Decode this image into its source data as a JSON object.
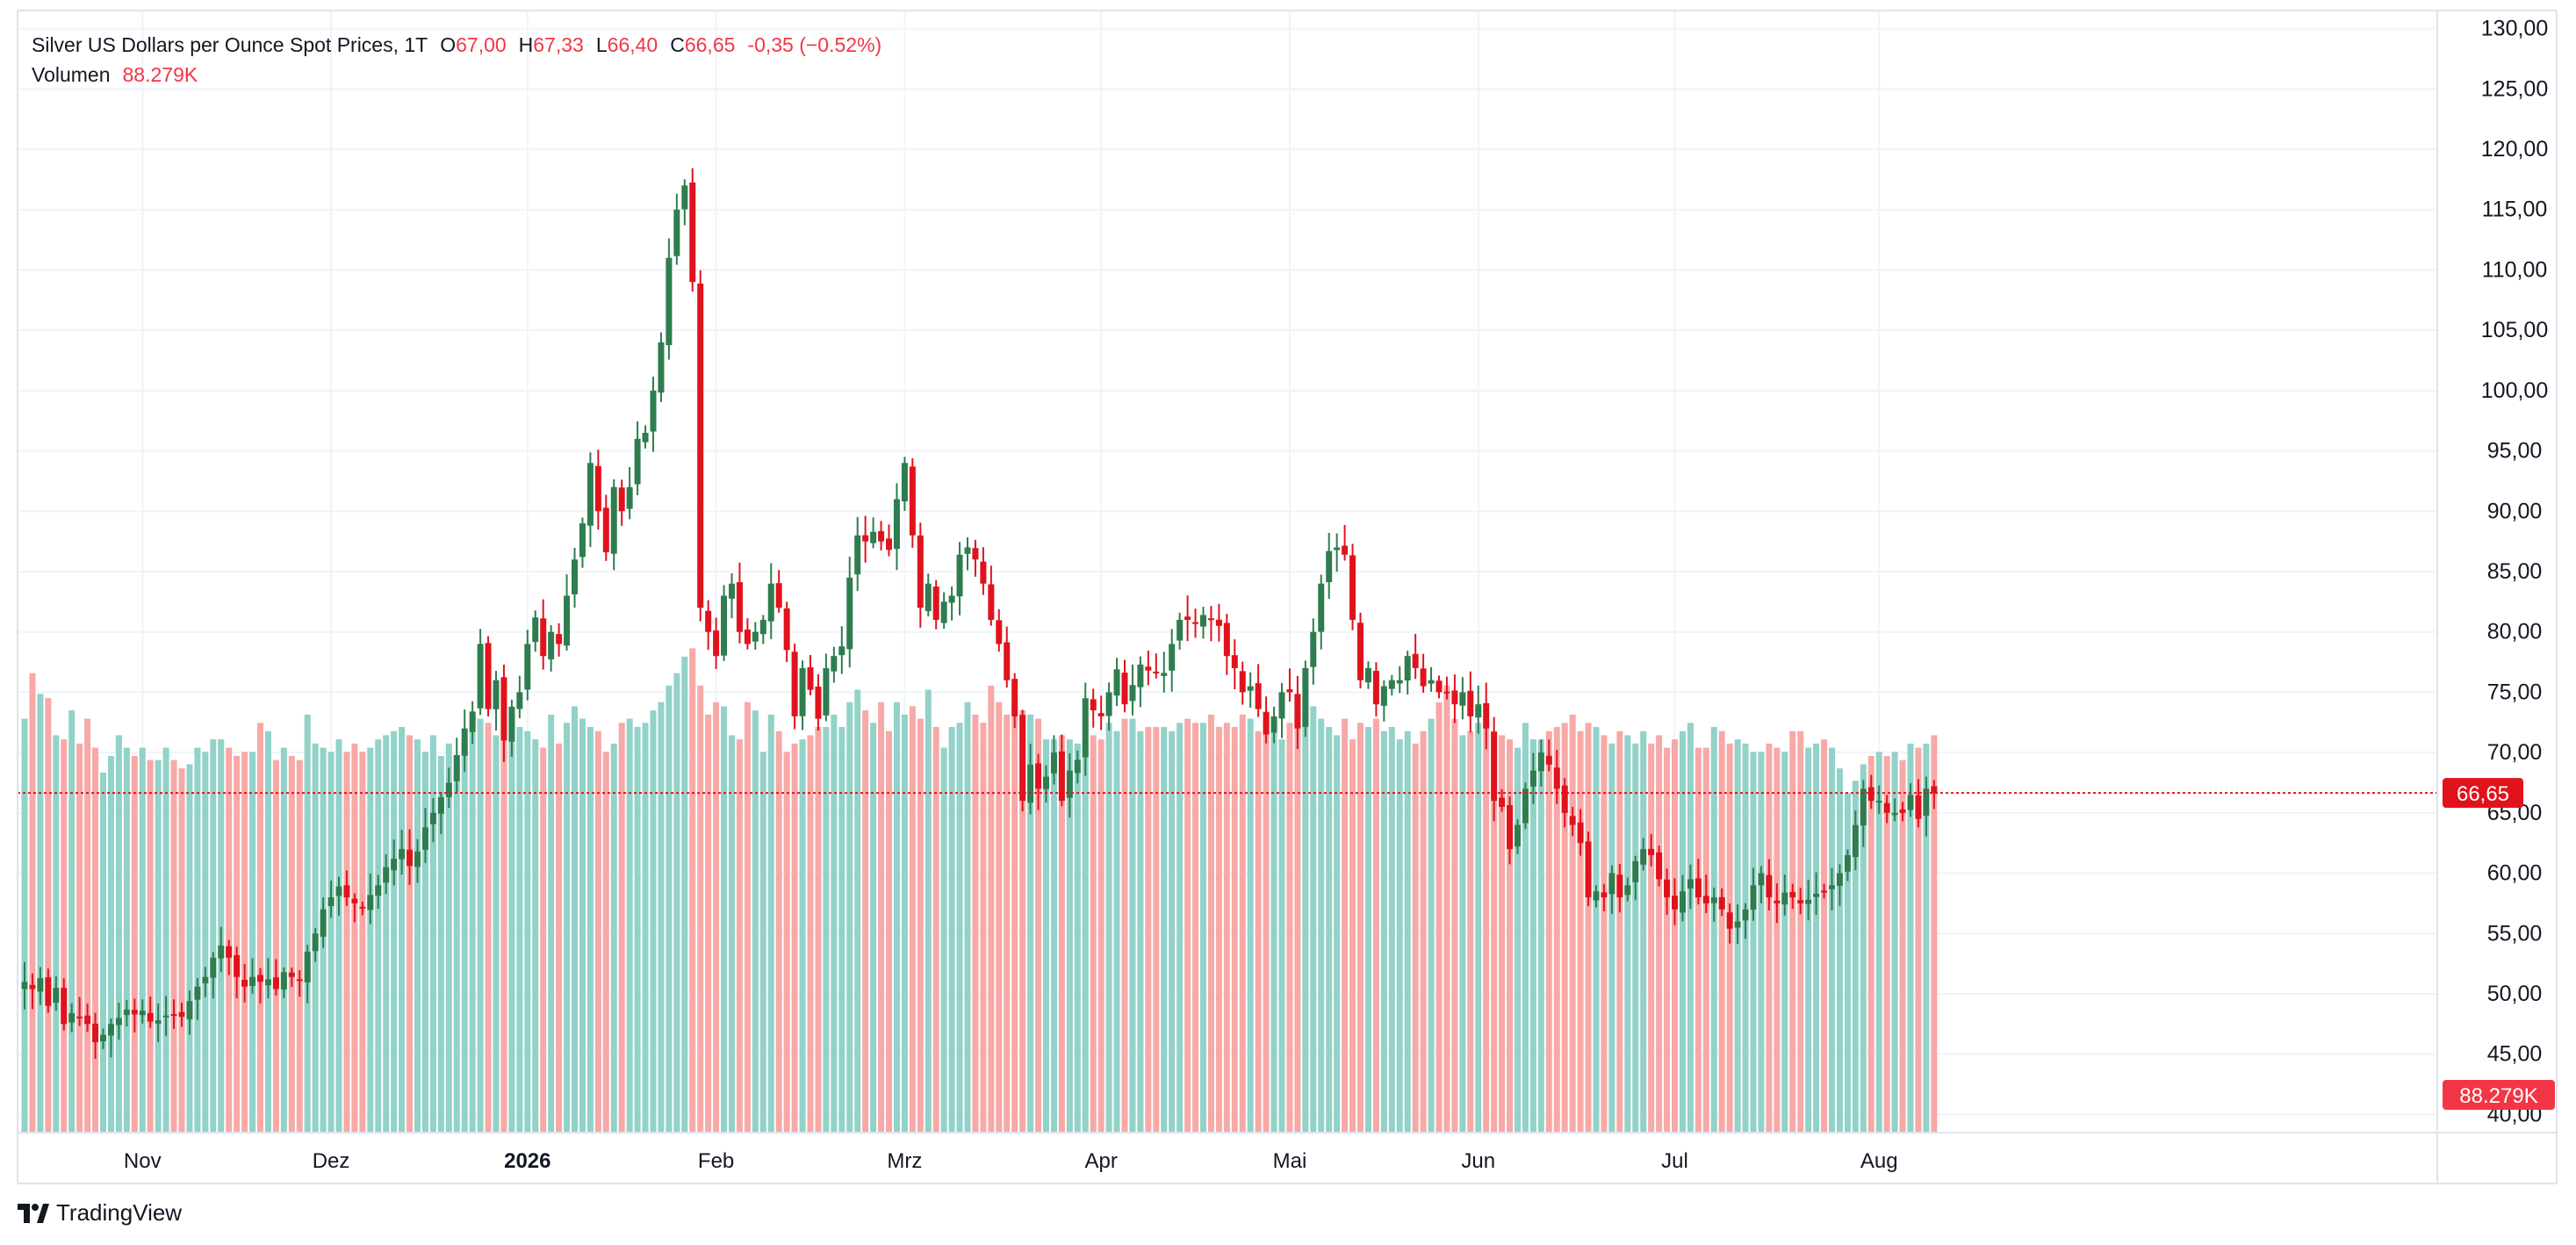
{
  "legend": {
    "title": "Silver US Dollars per Ounce Spot Prices, 1T",
    "o_label": "O",
    "o": "67,00",
    "h_label": "H",
    "h": "67,33",
    "l_label": "L",
    "l": "66,40",
    "c_label": "C",
    "c": "66,65",
    "change": "-0,35 (−0.52%)",
    "volume_label": "Volumen",
    "volume": "88.279K"
  },
  "brand": {
    "name": "TradingView"
  },
  "chart_data": {
    "type": "candlestick",
    "title": "Silver US Dollars per Ounce Spot Prices, 1T",
    "price_axis": {
      "range": [
        38.5,
        131.5
      ],
      "ticks": [
        "130,00",
        "125,00",
        "120,00",
        "115,00",
        "110,00",
        "105,00",
        "100,00",
        "95,00",
        "90,00",
        "85,00",
        "80,00",
        "75,00",
        "70,00",
        "65,00",
        "60,00",
        "55,00",
        "50,00",
        "45,00",
        "40,00"
      ]
    },
    "time_axis": {
      "labels": [
        {
          "text": "Nov",
          "index": 15,
          "bold": false
        },
        {
          "text": "Dez",
          "index": 39,
          "bold": false
        },
        {
          "text": "2026",
          "index": 64,
          "bold": true
        },
        {
          "text": "Feb",
          "index": 88,
          "bold": false
        },
        {
          "text": "Mrz",
          "index": 112,
          "bold": false
        },
        {
          "text": "Apr",
          "index": 137,
          "bold": false
        },
        {
          "text": "Mai",
          "index": 161,
          "bold": false
        },
        {
          "text": "Jun",
          "index": 185,
          "bold": false
        },
        {
          "text": "Jul",
          "index": 210,
          "bold": false
        },
        {
          "text": "Aug",
          "index": 236,
          "bold": false
        }
      ]
    },
    "last_price_label": "66,65",
    "last_price": 66.65,
    "last_volume_label": "88.279K",
    "volume_range_max": 140,
    "colors": {
      "up": "#26a69a",
      "down": "#ef5350",
      "up_candle": "#2e7d4f",
      "down_candle": "#e0131d",
      "volume_up": "#92d2c8",
      "volume_down": "#f7a9a7"
    },
    "grid": true,
    "closes": [
      51,
      50.4,
      51.3,
      49,
      50.5,
      47.5,
      48.4,
      48,
      47.5,
      46,
      46.6,
      47.5,
      48,
      48.7,
      48.3,
      48.6,
      47.7,
      47.8,
      48.2,
      48.2,
      48.1,
      49.4,
      50.6,
      51.4,
      53,
      54,
      53,
      51.4,
      50.6,
      51.4,
      51,
      51.2,
      50.4,
      51.8,
      51.4,
      51.2,
      53.5,
      55,
      57,
      58,
      58.9,
      58,
      57.5,
      57.1,
      58.2,
      59,
      60.5,
      61.2,
      62,
      60.6,
      61.8,
      63.8,
      65,
      66.3,
      67.5,
      69.8,
      72,
      73.4,
      79,
      73.6,
      76,
      71,
      73.8,
      75,
      79,
      81.2,
      78,
      80,
      79,
      83,
      86,
      89,
      94,
      90,
      86.6,
      92,
      90,
      92,
      96,
      96.5,
      100,
      104,
      111,
      115,
      117,
      109,
      82,
      80,
      78,
      83,
      84,
      80,
      79,
      80,
      81,
      84,
      82,
      78.5,
      73,
      77,
      75.2,
      72.8,
      77,
      78,
      78.8,
      84.5,
      88,
      87.5,
      88.3,
      87.5,
      86.8,
      91,
      94,
      88,
      82,
      84,
      81,
      82.5,
      83,
      86.4,
      87,
      86,
      84,
      81,
      79,
      76,
      73,
      66,
      69,
      67,
      68,
      70,
      66,
      68.5,
      69.4,
      74.5,
      73.5,
      73,
      75,
      76.9,
      74,
      75.6,
      77.3,
      76.8,
      76.6,
      76.6,
      79,
      81,
      81,
      80.7,
      81.4,
      81,
      80.5,
      78,
      77,
      75,
      75.5,
      73.6,
      71.5,
      73,
      75,
      75,
      72,
      77,
      80,
      84,
      86.7,
      87,
      86.4,
      81,
      76,
      77,
      74,
      75.5,
      76,
      76,
      78,
      77,
      75.5,
      76,
      75,
      75,
      74,
      75,
      73,
      74,
      72,
      66,
      65.5,
      62,
      64,
      67,
      68.5,
      70,
      69,
      67,
      65,
      64,
      62.5,
      58,
      58.5,
      58,
      60,
      58,
      59,
      61,
      62,
      61.5,
      59.5,
      58,
      57,
      58.5,
      59.5,
      58,
      57.5,
      58,
      57,
      55.4,
      56,
      57,
      59,
      60,
      58,
      57.5,
      58.4,
      58,
      57.5,
      57.8,
      58.3,
      58.4,
      59,
      60,
      61.5,
      64,
      67,
      66,
      66,
      65,
      65,
      65,
      66.5,
      64.5,
      67,
      66.65
    ],
    "volumes": [
      100,
      111,
      106,
      105,
      96,
      95,
      102,
      94,
      100,
      93,
      87,
      91,
      96,
      93,
      91,
      93,
      90,
      90,
      93,
      90,
      88,
      89,
      93,
      92,
      95,
      95,
      93,
      91,
      92,
      92,
      99,
      97,
      90,
      93,
      91,
      90,
      101,
      94,
      93,
      92,
      95,
      92,
      94,
      92,
      93,
      95,
      96,
      97,
      98,
      96,
      95,
      92,
      96,
      91,
      94,
      91,
      95,
      97,
      100,
      99,
      96,
      100,
      101,
      98,
      97,
      95,
      93,
      101,
      94,
      99,
      103,
      100,
      98,
      97,
      92,
      94,
      99,
      100,
      98,
      99,
      102,
      104,
      108,
      111,
      115,
      117,
      108,
      101,
      104,
      103,
      96,
      95,
      104,
      102,
      92,
      101,
      97,
      92,
      94,
      95,
      96,
      98,
      98,
      101,
      98,
      104,
      107,
      102,
      99,
      104,
      97,
      104,
      101,
      103,
      100,
      107,
      98,
      93,
      98,
      99,
      104,
      101,
      99,
      108,
      104,
      101,
      103,
      102,
      101,
      100,
      95,
      95,
      96,
      95,
      94,
      95,
      96,
      95,
      99,
      97,
      100,
      100,
      97,
      98,
      98,
      98,
      97,
      99,
      100,
      99,
      99,
      101,
      98,
      99,
      98,
      101,
      100,
      97,
      100,
      99,
      95,
      99,
      102,
      104,
      103,
      100,
      98,
      96,
      100,
      95,
      99,
      98,
      100,
      97,
      98,
      95,
      97,
      94,
      97,
      100,
      104,
      108,
      100,
      96,
      97,
      99,
      99,
      97,
      96,
      95,
      93,
      99,
      95,
      95,
      97,
      98,
      99,
      101,
      97,
      99,
      98,
      96,
      94,
      97,
      96,
      94,
      97,
      94,
      96,
      93,
      95,
      97,
      99,
      93,
      93,
      98,
      97,
      94,
      95,
      94,
      92,
      92,
      94,
      93,
      92,
      97,
      97,
      93,
      94,
      95,
      93,
      88,
      82,
      85,
      89,
      91,
      92,
      91,
      92,
      90,
      94,
      93,
      94,
      96,
      95,
      88,
      88.3
    ],
    "series": []
  }
}
